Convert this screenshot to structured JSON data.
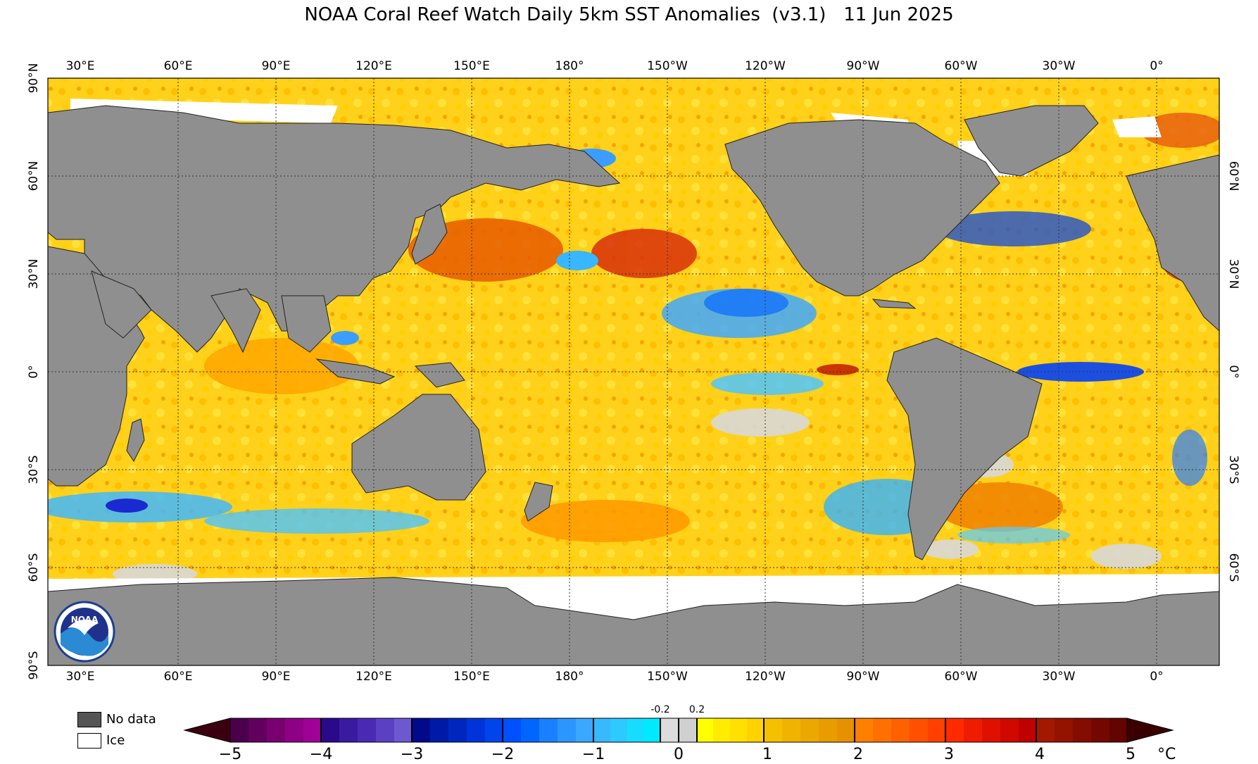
{
  "title": "NOAA Coral Reef Watch Daily 5km SST Anomalies  (v3.1)   11 Jun 2025",
  "map": {
    "lon_labels": [
      "30°E",
      "60°E",
      "90°E",
      "120°E",
      "150°E",
      "180°",
      "150°W",
      "120°W",
      "90°W",
      "60°W",
      "30°W",
      "0°"
    ],
    "lat_labels_left": [
      "90°N",
      "60°N",
      "30°N",
      "0°",
      "30°S",
      "60°S",
      "90°S"
    ],
    "lat_labels_right": [
      "60°N",
      "30°N",
      "0°",
      "30°S",
      "60°S"
    ],
    "colors": {
      "land": "#8f8f8f",
      "ocean_base": "#ffd11a",
      "ice": "#ffffff",
      "nodata": "#555555"
    }
  },
  "logo": {
    "text": "NOAA"
  },
  "legend": {
    "nodata_label": "No data",
    "ice_label": "Ice",
    "colorbar": {
      "ticks": [
        "−5",
        "−4",
        "−3",
        "−2",
        "−1",
        "0",
        "1",
        "2",
        "3",
        "4",
        "5"
      ],
      "small_ticks": [
        "-0.2",
        "0.2"
      ],
      "unit": "°C"
    }
  }
}
